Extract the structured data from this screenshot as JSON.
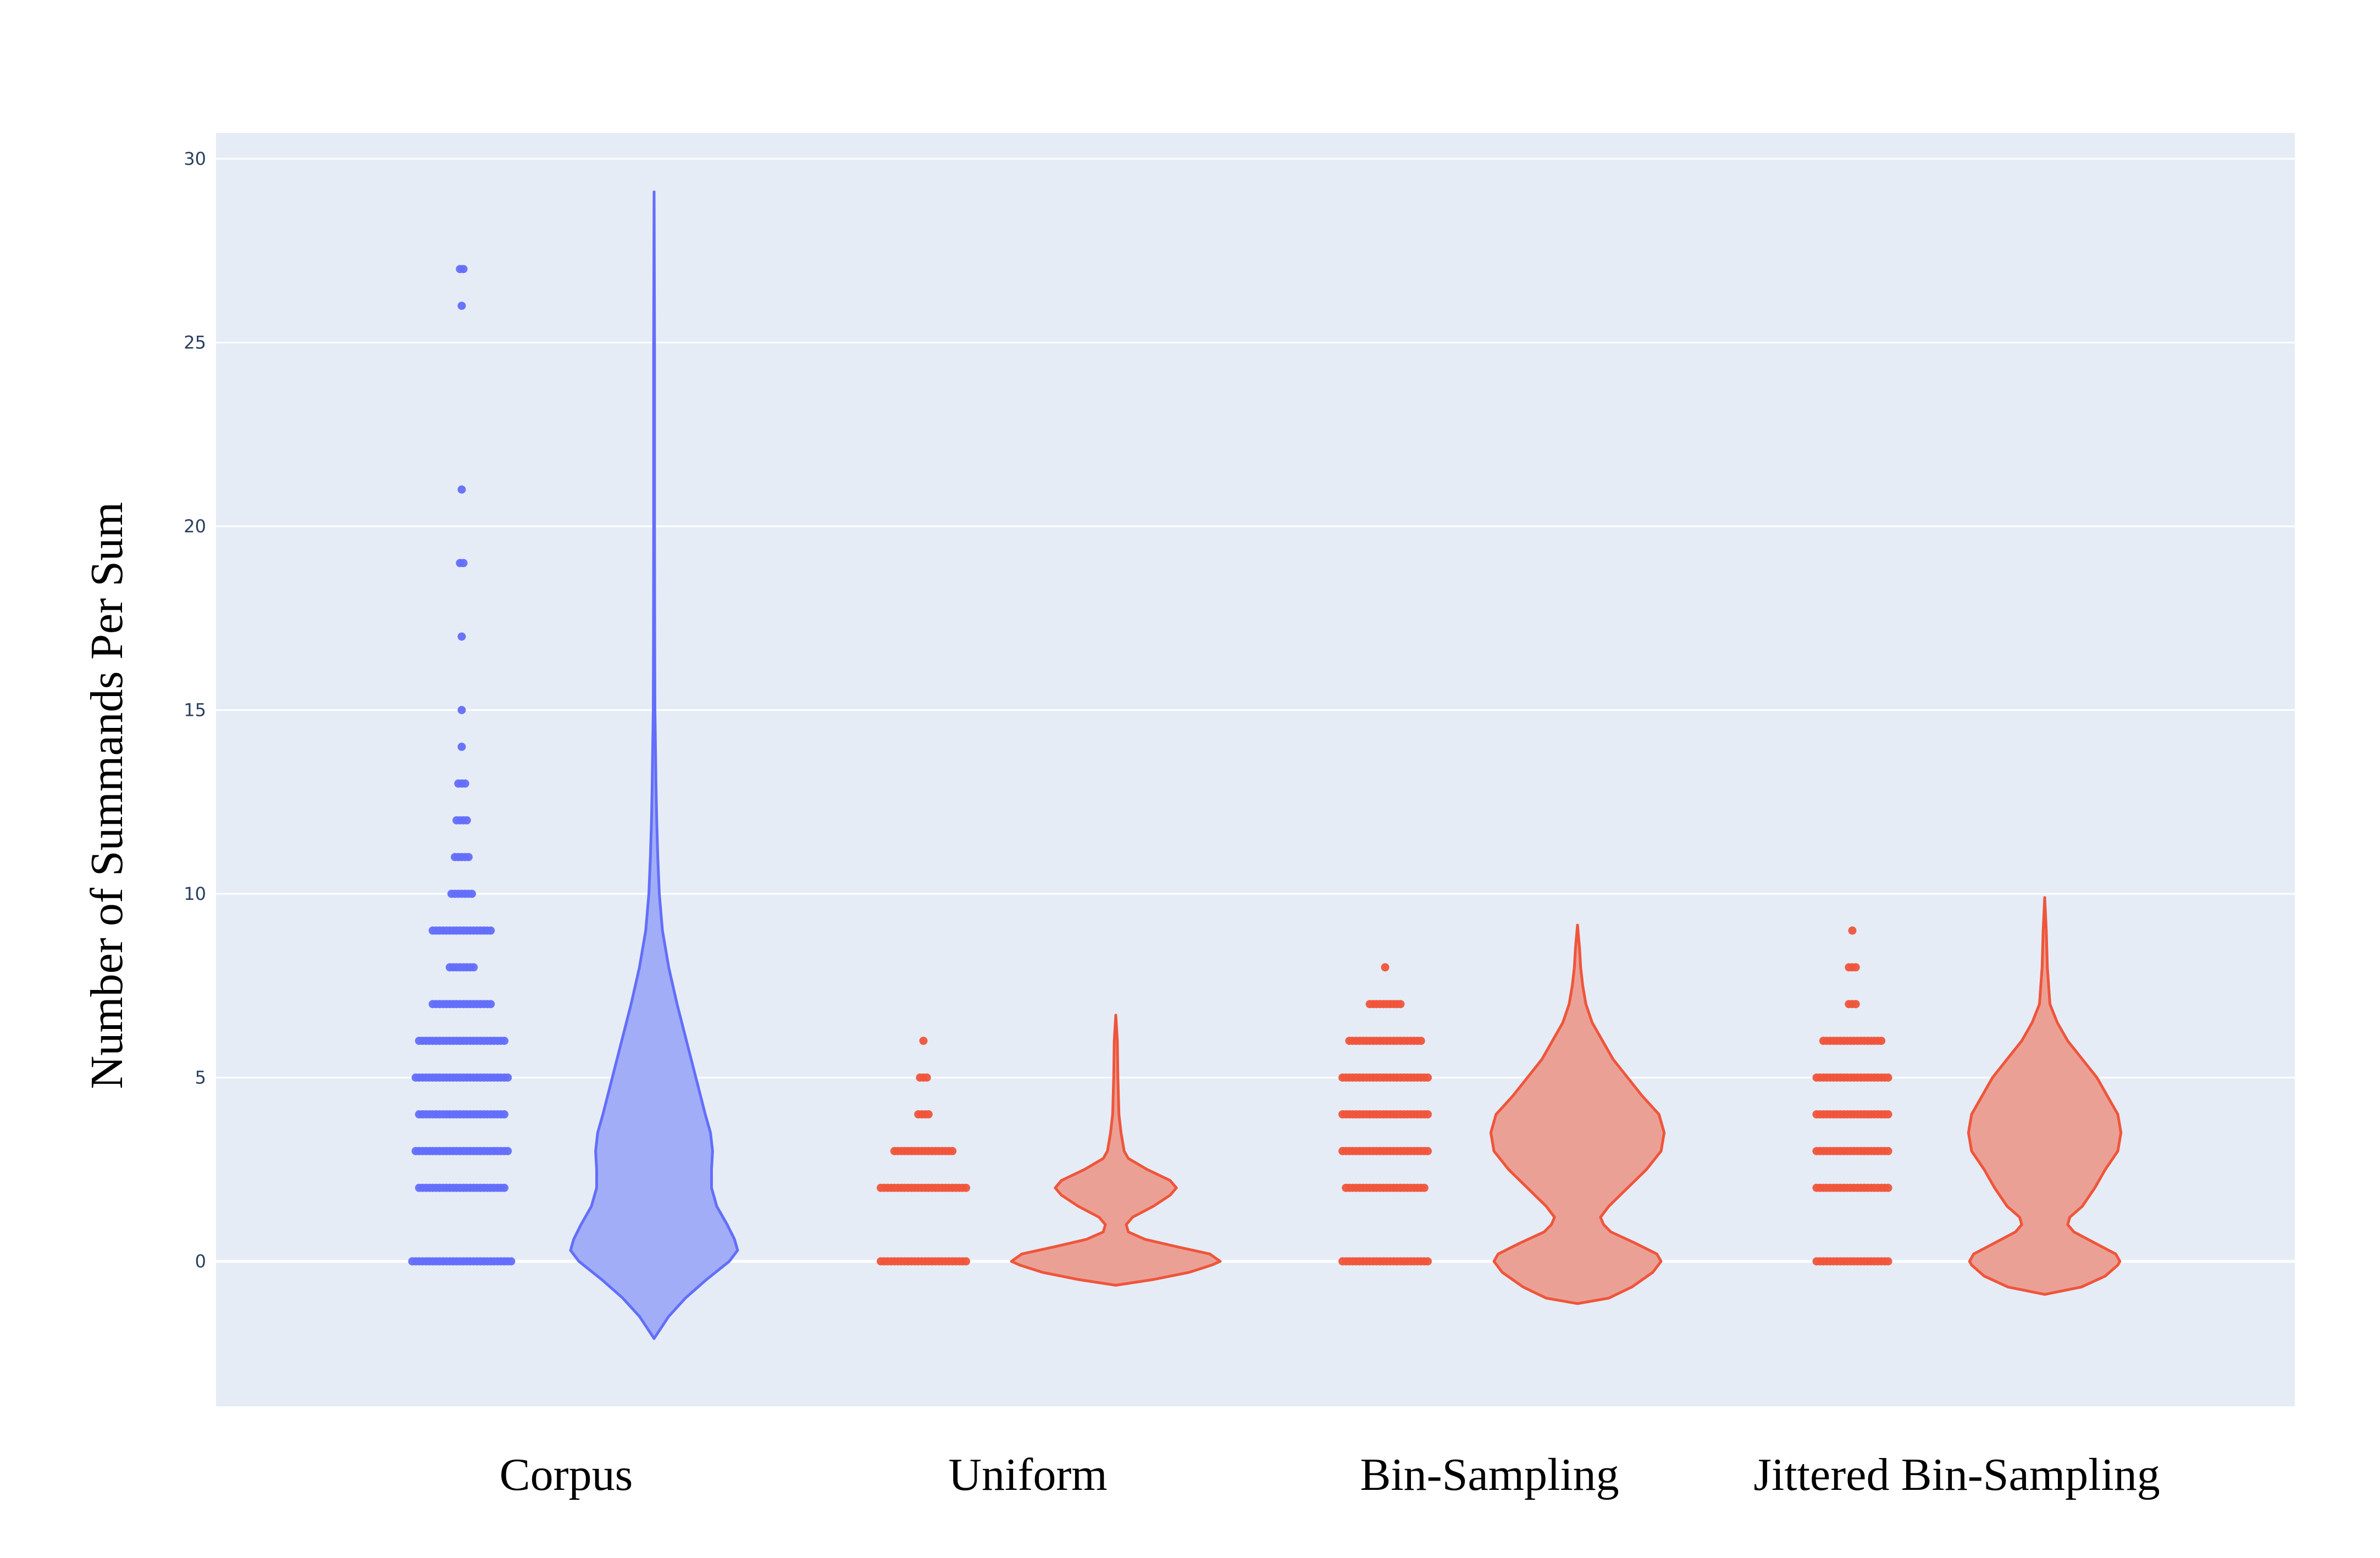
{
  "chart_data": {
    "type": "violin",
    "ylabel": "Number of Summands Per Sum",
    "xlabel": "",
    "ylim": [
      -3.8,
      30.8
    ],
    "yticks": [
      0,
      5,
      10,
      15,
      20,
      25,
      30
    ],
    "grid": true,
    "legend": "none",
    "colors": {
      "corpus_fill": "#a2adf8",
      "corpus_line": "#636efa",
      "synthetic_fill": "#eba095",
      "synthetic_line": "#ef553b",
      "plot_bg": "#e5ecf6",
      "grid": "#ffffff",
      "tick_text": "#2a3f5f"
    },
    "categories": [
      "Corpus",
      "Uniform",
      "Bin-Sampling",
      "Jittered Bin-Sampling"
    ],
    "series": [
      {
        "category": "Corpus",
        "color_key": "corpus",
        "points": [
          {
            "y": 0,
            "count": 30
          },
          {
            "y": 2,
            "count": 26
          },
          {
            "y": 3,
            "count": 28
          },
          {
            "y": 4,
            "count": 26
          },
          {
            "y": 5,
            "count": 28
          },
          {
            "y": 6,
            "count": 26
          },
          {
            "y": 7,
            "count": 18
          },
          {
            "y": 8,
            "count": 8
          },
          {
            "y": 9,
            "count": 18
          },
          {
            "y": 10,
            "count": 7
          },
          {
            "y": 11,
            "count": 5
          },
          {
            "y": 12,
            "count": 4
          },
          {
            "y": 13,
            "count": 3
          },
          {
            "y": 14,
            "count": 1
          },
          {
            "y": 15,
            "count": 1
          },
          {
            "y": 17,
            "count": 1
          },
          {
            "y": 19,
            "count": 2
          },
          {
            "y": 21,
            "count": 1
          },
          {
            "y": 26,
            "count": 1
          },
          {
            "y": 27,
            "count": 2
          }
        ],
        "violin": {
          "y_min": -2.1,
          "y_max": 29.1,
          "density": [
            [
              -2.1,
              0.0
            ],
            [
              -1.5,
              0.14
            ],
            [
              -1.0,
              0.3
            ],
            [
              -0.5,
              0.5
            ],
            [
              0.0,
              0.72
            ],
            [
              0.3,
              0.8
            ],
            [
              0.6,
              0.77
            ],
            [
              1.0,
              0.7
            ],
            [
              1.5,
              0.6
            ],
            [
              2.0,
              0.55
            ],
            [
              2.5,
              0.55
            ],
            [
              3.0,
              0.56
            ],
            [
              3.5,
              0.54
            ],
            [
              4.0,
              0.49
            ],
            [
              5.0,
              0.4
            ],
            [
              6.0,
              0.31
            ],
            [
              7.0,
              0.22
            ],
            [
              8.0,
              0.14
            ],
            [
              9.0,
              0.08
            ],
            [
              10.0,
              0.05
            ],
            [
              11.0,
              0.035
            ],
            [
              12.0,
              0.025
            ],
            [
              13.0,
              0.018
            ],
            [
              14.0,
              0.013
            ],
            [
              15.0,
              0.008
            ],
            [
              17.0,
              0.006
            ],
            [
              20.0,
              0.004
            ],
            [
              25.0,
              0.004
            ],
            [
              29.1,
              0.0
            ]
          ]
        }
      },
      {
        "category": "Uniform",
        "color_key": "synthetic",
        "points": [
          {
            "y": 0,
            "count": 26
          },
          {
            "y": 2,
            "count": 26
          },
          {
            "y": 3,
            "count": 18
          },
          {
            "y": 4,
            "count": 4
          },
          {
            "y": 5,
            "count": 3
          },
          {
            "y": 6,
            "count": 1
          }
        ],
        "violin": {
          "y_min": -0.65,
          "y_max": 6.7,
          "density": [
            [
              -0.65,
              0.0
            ],
            [
              -0.5,
              0.35
            ],
            [
              -0.3,
              0.7
            ],
            [
              -0.1,
              0.92
            ],
            [
              0.0,
              1.0
            ],
            [
              0.2,
              0.9
            ],
            [
              0.4,
              0.58
            ],
            [
              0.6,
              0.28
            ],
            [
              0.8,
              0.12
            ],
            [
              1.0,
              0.1
            ],
            [
              1.2,
              0.16
            ],
            [
              1.5,
              0.36
            ],
            [
              1.8,
              0.52
            ],
            [
              2.0,
              0.58
            ],
            [
              2.2,
              0.52
            ],
            [
              2.5,
              0.3
            ],
            [
              2.8,
              0.12
            ],
            [
              3.0,
              0.08
            ],
            [
              3.5,
              0.05
            ],
            [
              4.0,
              0.03
            ],
            [
              5.0,
              0.02
            ],
            [
              6.0,
              0.015
            ],
            [
              6.7,
              0.0
            ]
          ]
        }
      },
      {
        "category": "Bin-Sampling",
        "color_key": "synthetic",
        "points": [
          {
            "y": 0,
            "count": 26
          },
          {
            "y": 2,
            "count": 24
          },
          {
            "y": 3,
            "count": 26
          },
          {
            "y": 4,
            "count": 26
          },
          {
            "y": 5,
            "count": 26
          },
          {
            "y": 6,
            "count": 22
          },
          {
            "y": 7,
            "count": 10
          },
          {
            "y": 8,
            "count": 1
          }
        ],
        "violin": {
          "y_min": -1.15,
          "y_max": 9.15,
          "density": [
            [
              -1.15,
              0.0
            ],
            [
              -1.0,
              0.3
            ],
            [
              -0.7,
              0.52
            ],
            [
              -0.3,
              0.72
            ],
            [
              0.0,
              0.8
            ],
            [
              0.2,
              0.76
            ],
            [
              0.5,
              0.55
            ],
            [
              0.8,
              0.32
            ],
            [
              1.0,
              0.25
            ],
            [
              1.2,
              0.22
            ],
            [
              1.5,
              0.3
            ],
            [
              2.0,
              0.48
            ],
            [
              2.5,
              0.66
            ],
            [
              3.0,
              0.8
            ],
            [
              3.5,
              0.83
            ],
            [
              4.0,
              0.78
            ],
            [
              4.5,
              0.62
            ],
            [
              5.0,
              0.48
            ],
            [
              5.5,
              0.34
            ],
            [
              6.0,
              0.24
            ],
            [
              6.5,
              0.14
            ],
            [
              7.0,
              0.08
            ],
            [
              7.5,
              0.05
            ],
            [
              8.0,
              0.03
            ],
            [
              8.5,
              0.02
            ],
            [
              9.15,
              0.0
            ]
          ]
        }
      },
      {
        "category": "Jittered Bin-Sampling",
        "color_key": "synthetic",
        "points": [
          {
            "y": 0,
            "count": 22
          },
          {
            "y": 2,
            "count": 22
          },
          {
            "y": 3,
            "count": 22
          },
          {
            "y": 4,
            "count": 22
          },
          {
            "y": 5,
            "count": 22
          },
          {
            "y": 6,
            "count": 18
          },
          {
            "y": 7,
            "count": 3
          },
          {
            "y": 8,
            "count": 3
          },
          {
            "y": 9,
            "count": 1
          }
        ],
        "violin": {
          "y_min": -0.9,
          "y_max": 9.9,
          "density": [
            [
              -0.9,
              0.0
            ],
            [
              -0.7,
              0.35
            ],
            [
              -0.4,
              0.58
            ],
            [
              -0.1,
              0.7
            ],
            [
              0.0,
              0.72
            ],
            [
              0.2,
              0.68
            ],
            [
              0.5,
              0.48
            ],
            [
              0.8,
              0.28
            ],
            [
              1.0,
              0.22
            ],
            [
              1.2,
              0.24
            ],
            [
              1.5,
              0.36
            ],
            [
              2.0,
              0.48
            ],
            [
              2.5,
              0.58
            ],
            [
              3.0,
              0.7
            ],
            [
              3.5,
              0.73
            ],
            [
              4.0,
              0.7
            ],
            [
              4.5,
              0.6
            ],
            [
              5.0,
              0.5
            ],
            [
              5.5,
              0.36
            ],
            [
              6.0,
              0.22
            ],
            [
              6.5,
              0.12
            ],
            [
              7.0,
              0.05
            ],
            [
              8.0,
              0.025
            ],
            [
              9.0,
              0.015
            ],
            [
              9.9,
              0.0
            ]
          ]
        }
      }
    ]
  }
}
